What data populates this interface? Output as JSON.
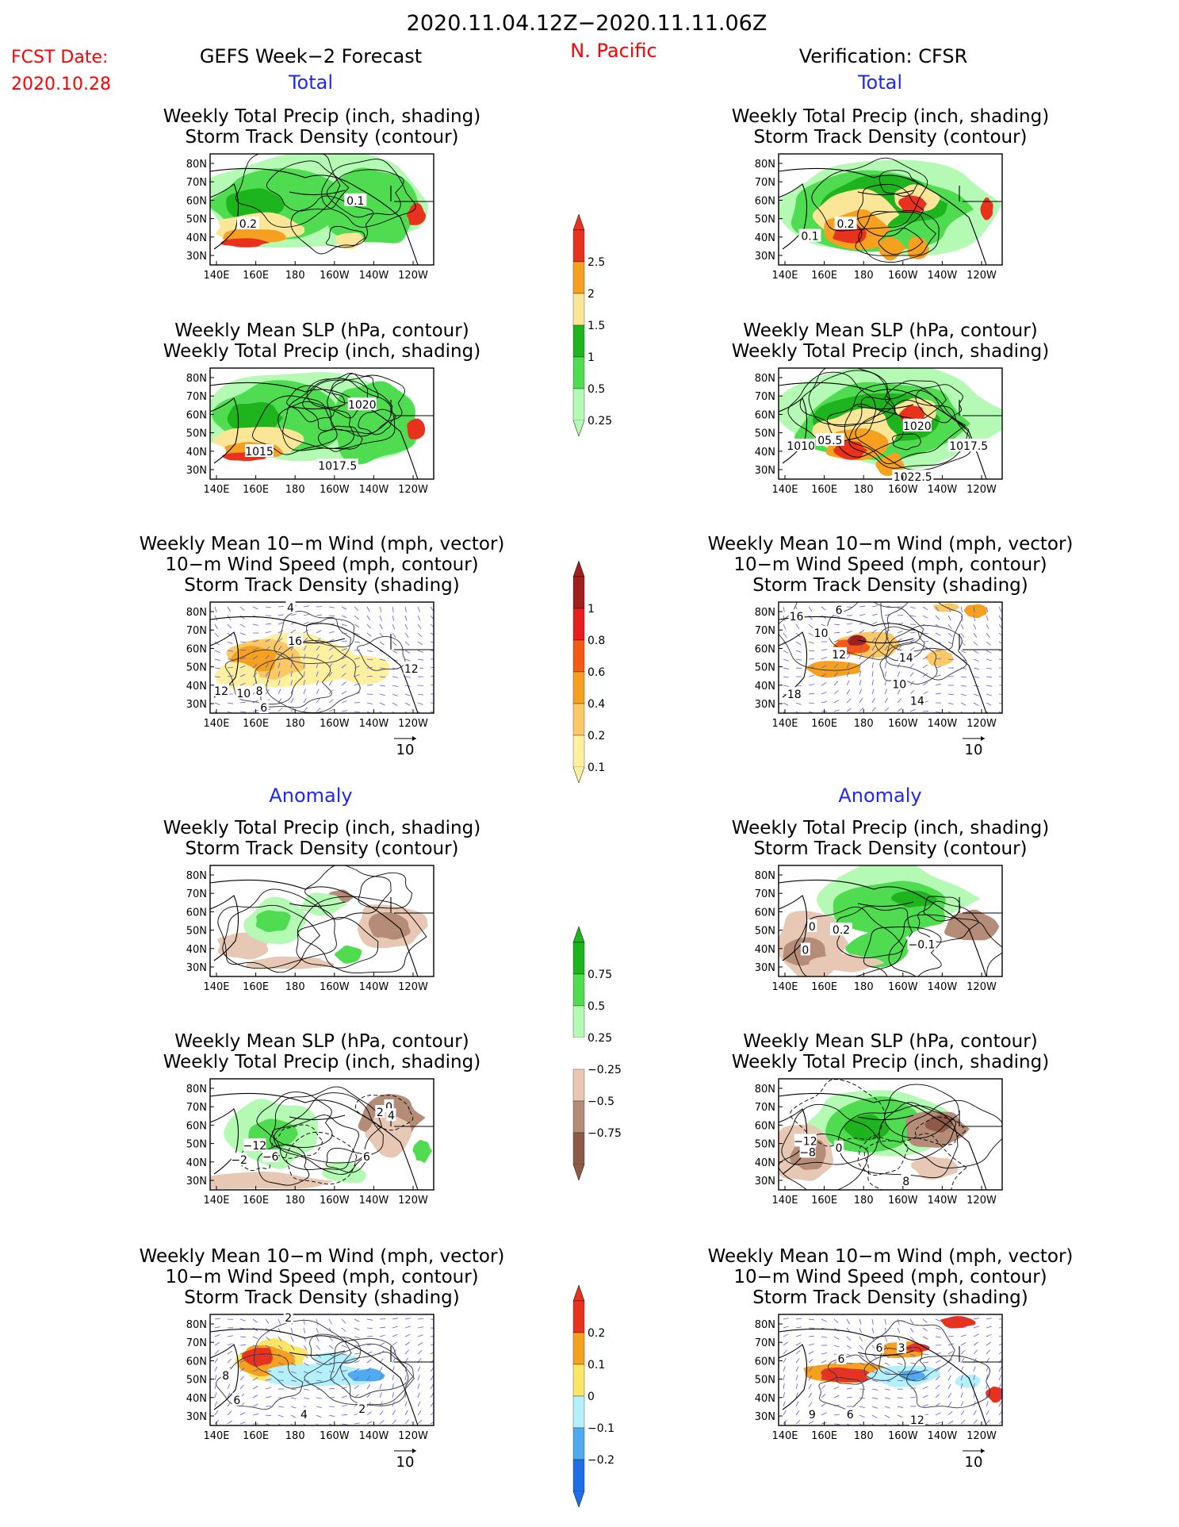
{
  "header": {
    "period": "2020.11.04.12Z−2020.11.11.06Z",
    "fcst_label": "FCST Date:",
    "fcst_date": "2020.10.28",
    "forecast_title": "GEFS Week−2 Forecast",
    "region": "N. Pacific",
    "verification_title": "Verification: CFSR",
    "total_label": "Total",
    "anomaly_label": "Anomaly"
  },
  "axes": {
    "x_ticks": [
      "140E",
      "160E",
      "180",
      "160W",
      "140W",
      "120W"
    ],
    "y_ticks": [
      "80N",
      "70N",
      "60N",
      "50N",
      "40N",
      "30N"
    ]
  },
  "panel_titles": {
    "precip_storm": [
      "Weekly Total Precip (inch, shading)",
      "Storm Track Density (contour)"
    ],
    "slp_precip": [
      "Weekly Mean SLP (hPa, contour)",
      "Weekly Total Precip (inch, shading)"
    ],
    "wind_storm": [
      "Weekly Mean 10−m Wind (mph, vector)",
      "10−m Wind Speed (mph, contour)",
      "Storm Track Density (shading)"
    ]
  },
  "vector_ref": "10",
  "colorbars": [
    {
      "name": "total-precip",
      "labels": [
        "2.5",
        "2",
        "1.5",
        "1",
        "0.5",
        "0.25"
      ],
      "colors": [
        "#e8321e",
        "#f5a01e",
        "#fae696",
        "#1eb41e",
        "#50dc50",
        "#b4fab4"
      ]
    },
    {
      "name": "total-storm-density",
      "labels": [
        "1",
        "0.8",
        "0.6",
        "0.4",
        "0.2",
        "0.1"
      ],
      "colors": [
        "#a01e1e",
        "#e81e1e",
        "#f55a14",
        "#f5a01e",
        "#fac864",
        "#fff0a0"
      ]
    },
    {
      "name": "anomaly-precip",
      "labels": [
        "0.75",
        "0.5",
        "0.25",
        "−0.25",
        "−0.5",
        "−0.75"
      ],
      "colors": [
        "#1eb41e",
        "#50dc50",
        "#b4fab4",
        "#ffffff",
        "#e6c8b4",
        "#b48c78",
        "#8c5a46"
      ]
    },
    {
      "name": "anomaly-storm-density",
      "labels": [
        "0.2",
        "0.1",
        "0",
        "−0.1",
        "−0.2"
      ],
      "colors": [
        "#e8321e",
        "#f5a01e",
        "#fae664",
        "#b4f0fa",
        "#50aaf0",
        "#1e6ee6"
      ]
    }
  ],
  "chart_data": [
    {
      "type": "map",
      "name": "forecast-total-precip",
      "column": "GEFS",
      "section": "Total",
      "shading": "Weekly total precip (inch)",
      "contour": "Storm track density",
      "contour_labels": [
        "0.2",
        "0.1"
      ]
    },
    {
      "type": "map",
      "name": "forecast-total-slp",
      "column": "GEFS",
      "section": "Total",
      "shading": "Weekly total precip (inch)",
      "contour": "Weekly mean SLP (hPa)",
      "contour_labels": [
        "1020",
        "1015",
        "1017.5"
      ]
    },
    {
      "type": "map",
      "name": "forecast-total-wind",
      "column": "GEFS",
      "section": "Total",
      "shading": "Storm track density",
      "contour": "10-m wind speed (mph)",
      "contour_labels": [
        "4",
        "16",
        "12",
        "10",
        "8",
        "6",
        "12"
      ]
    },
    {
      "type": "map",
      "name": "forecast-anomaly-precip",
      "column": "GEFS",
      "section": "Anomaly",
      "shading": "Weekly total precip anomaly (inch)",
      "contour": "Storm track density",
      "contour_labels": []
    },
    {
      "type": "map",
      "name": "forecast-anomaly-slp",
      "column": "GEFS",
      "section": "Anomaly",
      "shading": "Weekly total precip anomaly (inch)",
      "contour": "Weekly mean SLP (hPa)",
      "contour_labels": [
        "2",
        "0",
        "4",
        "−12",
        "−2",
        "−6",
        "6"
      ]
    },
    {
      "type": "map",
      "name": "forecast-anomaly-wind",
      "column": "GEFS",
      "section": "Anomaly",
      "shading": "Storm track density anomaly",
      "contour": "10-m wind speed (mph)",
      "contour_labels": [
        "2",
        "8",
        "6",
        "4",
        "2"
      ]
    },
    {
      "type": "map",
      "name": "verification-total-precip",
      "column": "CFSR",
      "section": "Total",
      "shading": "Weekly total precip (inch)",
      "contour": "Storm track density",
      "contour_labels": [
        "0.2",
        "0.1"
      ]
    },
    {
      "type": "map",
      "name": "verification-total-slp",
      "column": "CFSR",
      "section": "Total",
      "shading": "Weekly total precip (inch)",
      "contour": "Weekly mean SLP (hPa)",
      "contour_labels": [
        "1020",
        "1010",
        "05.5",
        "1017.5",
        "1022.5"
      ]
    },
    {
      "type": "map",
      "name": "verification-total-wind",
      "column": "CFSR",
      "section": "Total",
      "shading": "Storm track density",
      "contour": "10-m wind speed (mph)",
      "contour_labels": [
        "6",
        "16",
        "10",
        "12",
        "14",
        "18",
        "10",
        "14"
      ]
    },
    {
      "type": "map",
      "name": "verification-anomaly-precip",
      "column": "CFSR",
      "section": "Anomaly",
      "shading": "Weekly total precip anomaly (inch)",
      "contour": "Storm track density",
      "contour_labels": [
        "0",
        "0.2",
        "0",
        "−0.1"
      ]
    },
    {
      "type": "map",
      "name": "verification-anomaly-slp",
      "column": "CFSR",
      "section": "Anomaly",
      "shading": "Weekly total precip anomaly (inch)",
      "contour": "Weekly mean SLP (hPa)",
      "contour_labels": [
        "−12",
        "−8",
        "0",
        "8"
      ]
    },
    {
      "type": "map",
      "name": "verification-anomaly-wind",
      "column": "CFSR",
      "section": "Anomaly",
      "shading": "Storm track density anomaly",
      "contour": "10-m wind speed (mph)",
      "contour_labels": [
        "3",
        "6",
        "6",
        "9",
        "6",
        "12"
      ]
    }
  ]
}
